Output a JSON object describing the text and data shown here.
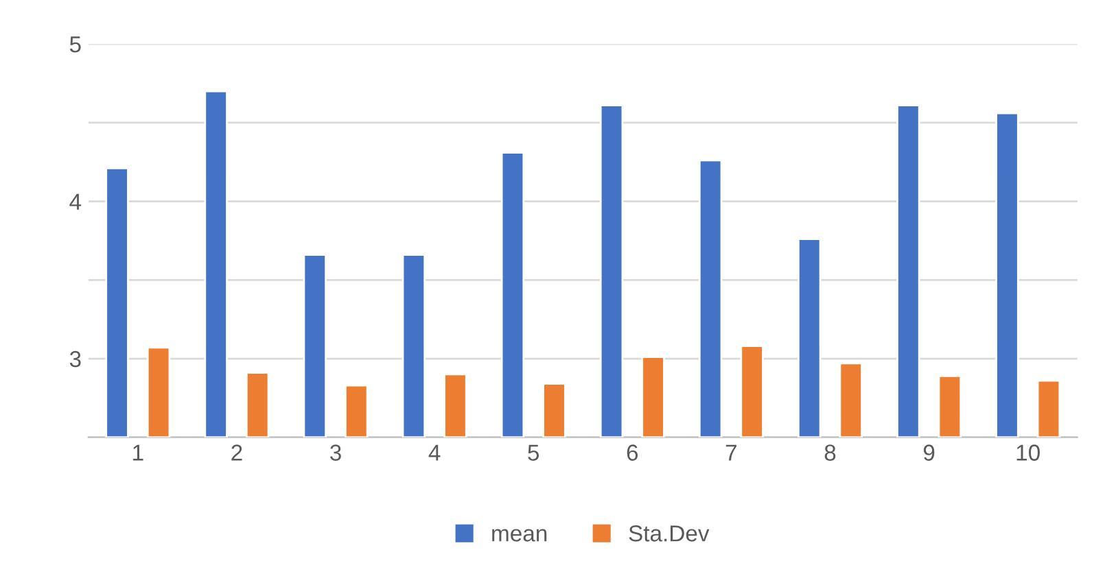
{
  "chart_data": {
    "type": "bar",
    "categories": [
      "1",
      "2",
      "3",
      "4",
      "5",
      "6",
      "7",
      "8",
      "9",
      "10"
    ],
    "series": [
      {
        "name": "mean",
        "color": "#4472c4",
        "values": [
          4.21,
          4.7,
          3.66,
          3.66,
          4.31,
          4.61,
          4.26,
          3.76,
          4.61,
          4.56
        ]
      },
      {
        "name": "Sta.Dev",
        "color": "#ed7d31",
        "values": [
          3.07,
          2.91,
          2.83,
          2.9,
          2.84,
          3.01,
          3.08,
          2.97,
          2.89,
          2.86
        ]
      }
    ],
    "ylim": [
      2.5,
      5
    ],
    "yticks": [
      {
        "value": 2.5,
        "label": null
      },
      3,
      {
        "value": 3.5,
        "label": null
      },
      4,
      {
        "value": 4.5,
        "label": null
      },
      5
    ],
    "grid": "y",
    "legend": "bottom"
  }
}
